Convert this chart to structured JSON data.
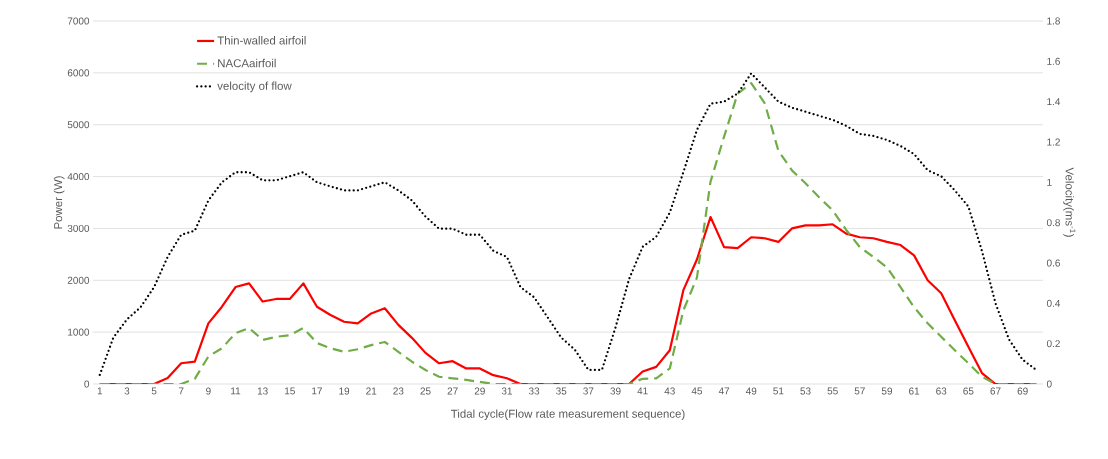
{
  "chart_data": {
    "type": "line",
    "xlabel": "Tidal cycle(Flow rate measurement sequence)",
    "ylabel": "Power (W)",
    "y2label": "Velocity(ms$^{-1}$)",
    "categories": [
      "1",
      null,
      "3",
      null,
      "5",
      null,
      "7",
      null,
      "9",
      null,
      "11",
      null,
      "13",
      null,
      "15",
      null,
      "17",
      null,
      "19",
      null,
      "21",
      null,
      "23",
      null,
      "25",
      null,
      "27",
      null,
      "29",
      null,
      "31",
      null,
      "33",
      null,
      "35",
      null,
      "37",
      null,
      "39",
      null,
      "41",
      null,
      "43",
      null,
      "45",
      null,
      "47",
      null,
      "49",
      null,
      "51",
      null,
      "53",
      null,
      "55",
      null,
      "57",
      null,
      "59",
      null,
      "61",
      null,
      "63",
      null,
      "65",
      null,
      "67",
      null,
      "69",
      null
    ],
    "series": [
      {
        "name": "Thin-walled airfoil",
        "color": "#ff0000",
        "line_style": "solid",
        "values": [
          0,
          0,
          0,
          0,
          0,
          115,
          400,
          430,
          1170,
          1490,
          1870,
          1940,
          1590,
          1640,
          1640,
          1940,
          1490,
          1330,
          1200,
          1170,
          1360,
          1460,
          1140,
          890,
          600,
          400,
          440,
          300,
          300,
          170,
          110,
          0,
          0,
          0,
          0,
          0,
          0,
          0,
          0,
          0,
          240,
          330,
          650,
          1810,
          2400,
          3220,
          2640,
          2620,
          2830,
          2810,
          2740,
          3000,
          3060,
          3060,
          3080,
          2900,
          2830,
          2810,
          2740,
          2680,
          2480,
          2000,
          1750,
          1230,
          720,
          210,
          0,
          0,
          0,
          0
        ]
      },
      {
        "name": "NACAairfoil",
        "color": "#70ad47",
        "line_style": "dashed",
        "values": [
          0,
          0,
          0,
          0,
          0,
          0,
          0,
          100,
          530,
          690,
          980,
          1080,
          850,
          910,
          940,
          1080,
          790,
          690,
          620,
          670,
          750,
          810,
          620,
          430,
          270,
          140,
          110,
          80,
          40,
          0,
          0,
          0,
          0,
          0,
          0,
          0,
          0,
          0,
          0,
          0,
          100,
          110,
          300,
          1420,
          2050,
          3900,
          4770,
          5600,
          5800,
          5410,
          4500,
          4120,
          3870,
          3600,
          3350,
          2970,
          2640,
          2450,
          2250,
          1870,
          1480,
          1170,
          910,
          650,
          400,
          140,
          0,
          0,
          0,
          0
        ]
      },
      {
        "name": "velocity of flow",
        "color": "#000000",
        "line_style": "dotted",
        "axis": "y2",
        "values": [
          0.045,
          0.23,
          0.32,
          0.38,
          0.48,
          0.63,
          0.74,
          0.76,
          0.91,
          1.0,
          1.05,
          1.05,
          1.01,
          1.01,
          1.03,
          1.05,
          1.0,
          0.98,
          0.96,
          0.96,
          0.98,
          1.0,
          0.96,
          0.91,
          0.83,
          0.77,
          0.77,
          0.74,
          0.74,
          0.66,
          0.63,
          0.48,
          0.43,
          0.33,
          0.23,
          0.17,
          0.07,
          0.07,
          0.28,
          0.52,
          0.68,
          0.73,
          0.85,
          1.05,
          1.26,
          1.39,
          1.4,
          1.44,
          1.54,
          1.47,
          1.4,
          1.37,
          1.35,
          1.33,
          1.31,
          1.28,
          1.24,
          1.23,
          1.21,
          1.18,
          1.14,
          1.06,
          1.03,
          0.96,
          0.88,
          0.66,
          0.4,
          0.22,
          0.12,
          0.07
        ]
      }
    ],
    "ylim": [
      0,
      7000
    ],
    "yticks": [
      0,
      1000,
      2000,
      3000,
      4000,
      5000,
      6000,
      7000
    ],
    "y2lim": [
      0,
      1.8
    ],
    "y2ticks": [
      0,
      0.2,
      0.4,
      0.6,
      0.8,
      1,
      1.2,
      1.4,
      1.6,
      1.8
    ],
    "grid": "y",
    "legend": "top left"
  }
}
